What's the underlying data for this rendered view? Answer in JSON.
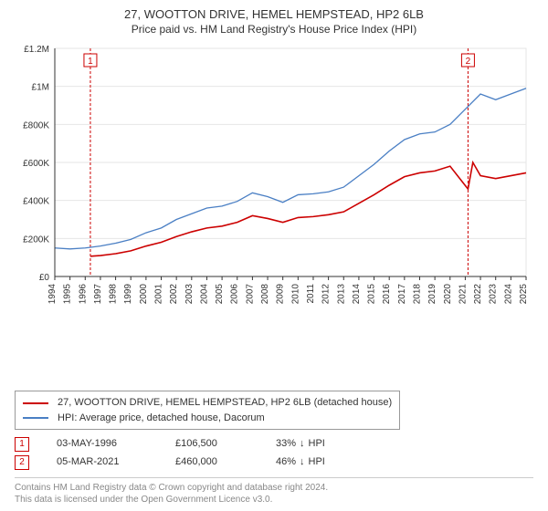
{
  "title": "27, WOOTTON DRIVE, HEMEL HEMPSTEAD, HP2 6LB",
  "subtitle": "Price paid vs. HM Land Registry's House Price Index (HPI)",
  "chart": {
    "type": "line",
    "background_color": "#ffffff",
    "grid_color": "#e6e6e6",
    "axis_color": "#333333",
    "x_years": [
      1994,
      1995,
      1996,
      1997,
      1998,
      1999,
      2000,
      2001,
      2002,
      2003,
      2004,
      2005,
      2006,
      2007,
      2008,
      2009,
      2010,
      2011,
      2012,
      2013,
      2014,
      2015,
      2016,
      2017,
      2018,
      2019,
      2020,
      2021,
      2022,
      2023,
      2024,
      2025
    ],
    "ylim": [
      0,
      1200000
    ],
    "ytick_step": 200000,
    "ytick_labels": [
      "£0",
      "£200K",
      "£400K",
      "£600K",
      "£800K",
      "£1M",
      "£1.2M"
    ],
    "series": [
      {
        "name": "hpi",
        "label": "HPI: Average price, detached house, Dacorum",
        "color": "#4a7fc4",
        "width": 1.3,
        "data": [
          [
            1994,
            150000
          ],
          [
            1995,
            145000
          ],
          [
            1996,
            150000
          ],
          [
            1997,
            160000
          ],
          [
            1998,
            175000
          ],
          [
            1999,
            195000
          ],
          [
            2000,
            230000
          ],
          [
            2001,
            255000
          ],
          [
            2002,
            300000
          ],
          [
            2003,
            330000
          ],
          [
            2004,
            360000
          ],
          [
            2005,
            370000
          ],
          [
            2006,
            395000
          ],
          [
            2007,
            440000
          ],
          [
            2008,
            420000
          ],
          [
            2009,
            390000
          ],
          [
            2010,
            430000
          ],
          [
            2011,
            435000
          ],
          [
            2012,
            445000
          ],
          [
            2013,
            470000
          ],
          [
            2014,
            530000
          ],
          [
            2015,
            590000
          ],
          [
            2016,
            660000
          ],
          [
            2017,
            720000
          ],
          [
            2018,
            750000
          ],
          [
            2019,
            760000
          ],
          [
            2020,
            800000
          ],
          [
            2021,
            880000
          ],
          [
            2022,
            960000
          ],
          [
            2023,
            930000
          ],
          [
            2024,
            960000
          ],
          [
            2025,
            990000
          ]
        ]
      },
      {
        "name": "price_paid",
        "label": "27, WOOTTON DRIVE, HEMEL HEMPSTEAD, HP2 6LB (detached house)",
        "color": "#cc0000",
        "width": 1.6,
        "data": [
          [
            1996.34,
            106500
          ],
          [
            1997,
            110000
          ],
          [
            1998,
            120000
          ],
          [
            1999,
            135000
          ],
          [
            2000,
            160000
          ],
          [
            2001,
            180000
          ],
          [
            2002,
            210000
          ],
          [
            2003,
            235000
          ],
          [
            2004,
            255000
          ],
          [
            2005,
            265000
          ],
          [
            2006,
            285000
          ],
          [
            2007,
            320000
          ],
          [
            2008,
            305000
          ],
          [
            2009,
            285000
          ],
          [
            2010,
            310000
          ],
          [
            2011,
            315000
          ],
          [
            2012,
            325000
          ],
          [
            2013,
            340000
          ],
          [
            2014,
            385000
          ],
          [
            2015,
            430000
          ],
          [
            2016,
            480000
          ],
          [
            2017,
            525000
          ],
          [
            2018,
            545000
          ],
          [
            2019,
            555000
          ],
          [
            2020,
            580000
          ],
          [
            2021.18,
            460000
          ],
          [
            2021.5,
            600000
          ],
          [
            2022,
            530000
          ],
          [
            2023,
            515000
          ],
          [
            2024,
            530000
          ],
          [
            2025,
            545000
          ]
        ]
      }
    ],
    "markers": [
      {
        "n": "1",
        "year": 1996.34,
        "color": "#cc0000",
        "date": "03-MAY-1996",
        "price": "£106,500",
        "pct": "33%",
        "arrow": "↓",
        "vs": "HPI"
      },
      {
        "n": "2",
        "year": 2021.18,
        "color": "#cc0000",
        "date": "05-MAR-2021",
        "price": "£460,000",
        "pct": "46%",
        "arrow": "↓",
        "vs": "HPI"
      }
    ]
  },
  "legend": {
    "series1": "27, WOOTTON DRIVE, HEMEL HEMPSTEAD, HP2 6LB (detached house)",
    "series2": "HPI: Average price, detached house, Dacorum"
  },
  "footer": {
    "line1": "Contains HM Land Registry data © Crown copyright and database right 2024.",
    "line2": "This data is licensed under the Open Government Licence v3.0."
  }
}
